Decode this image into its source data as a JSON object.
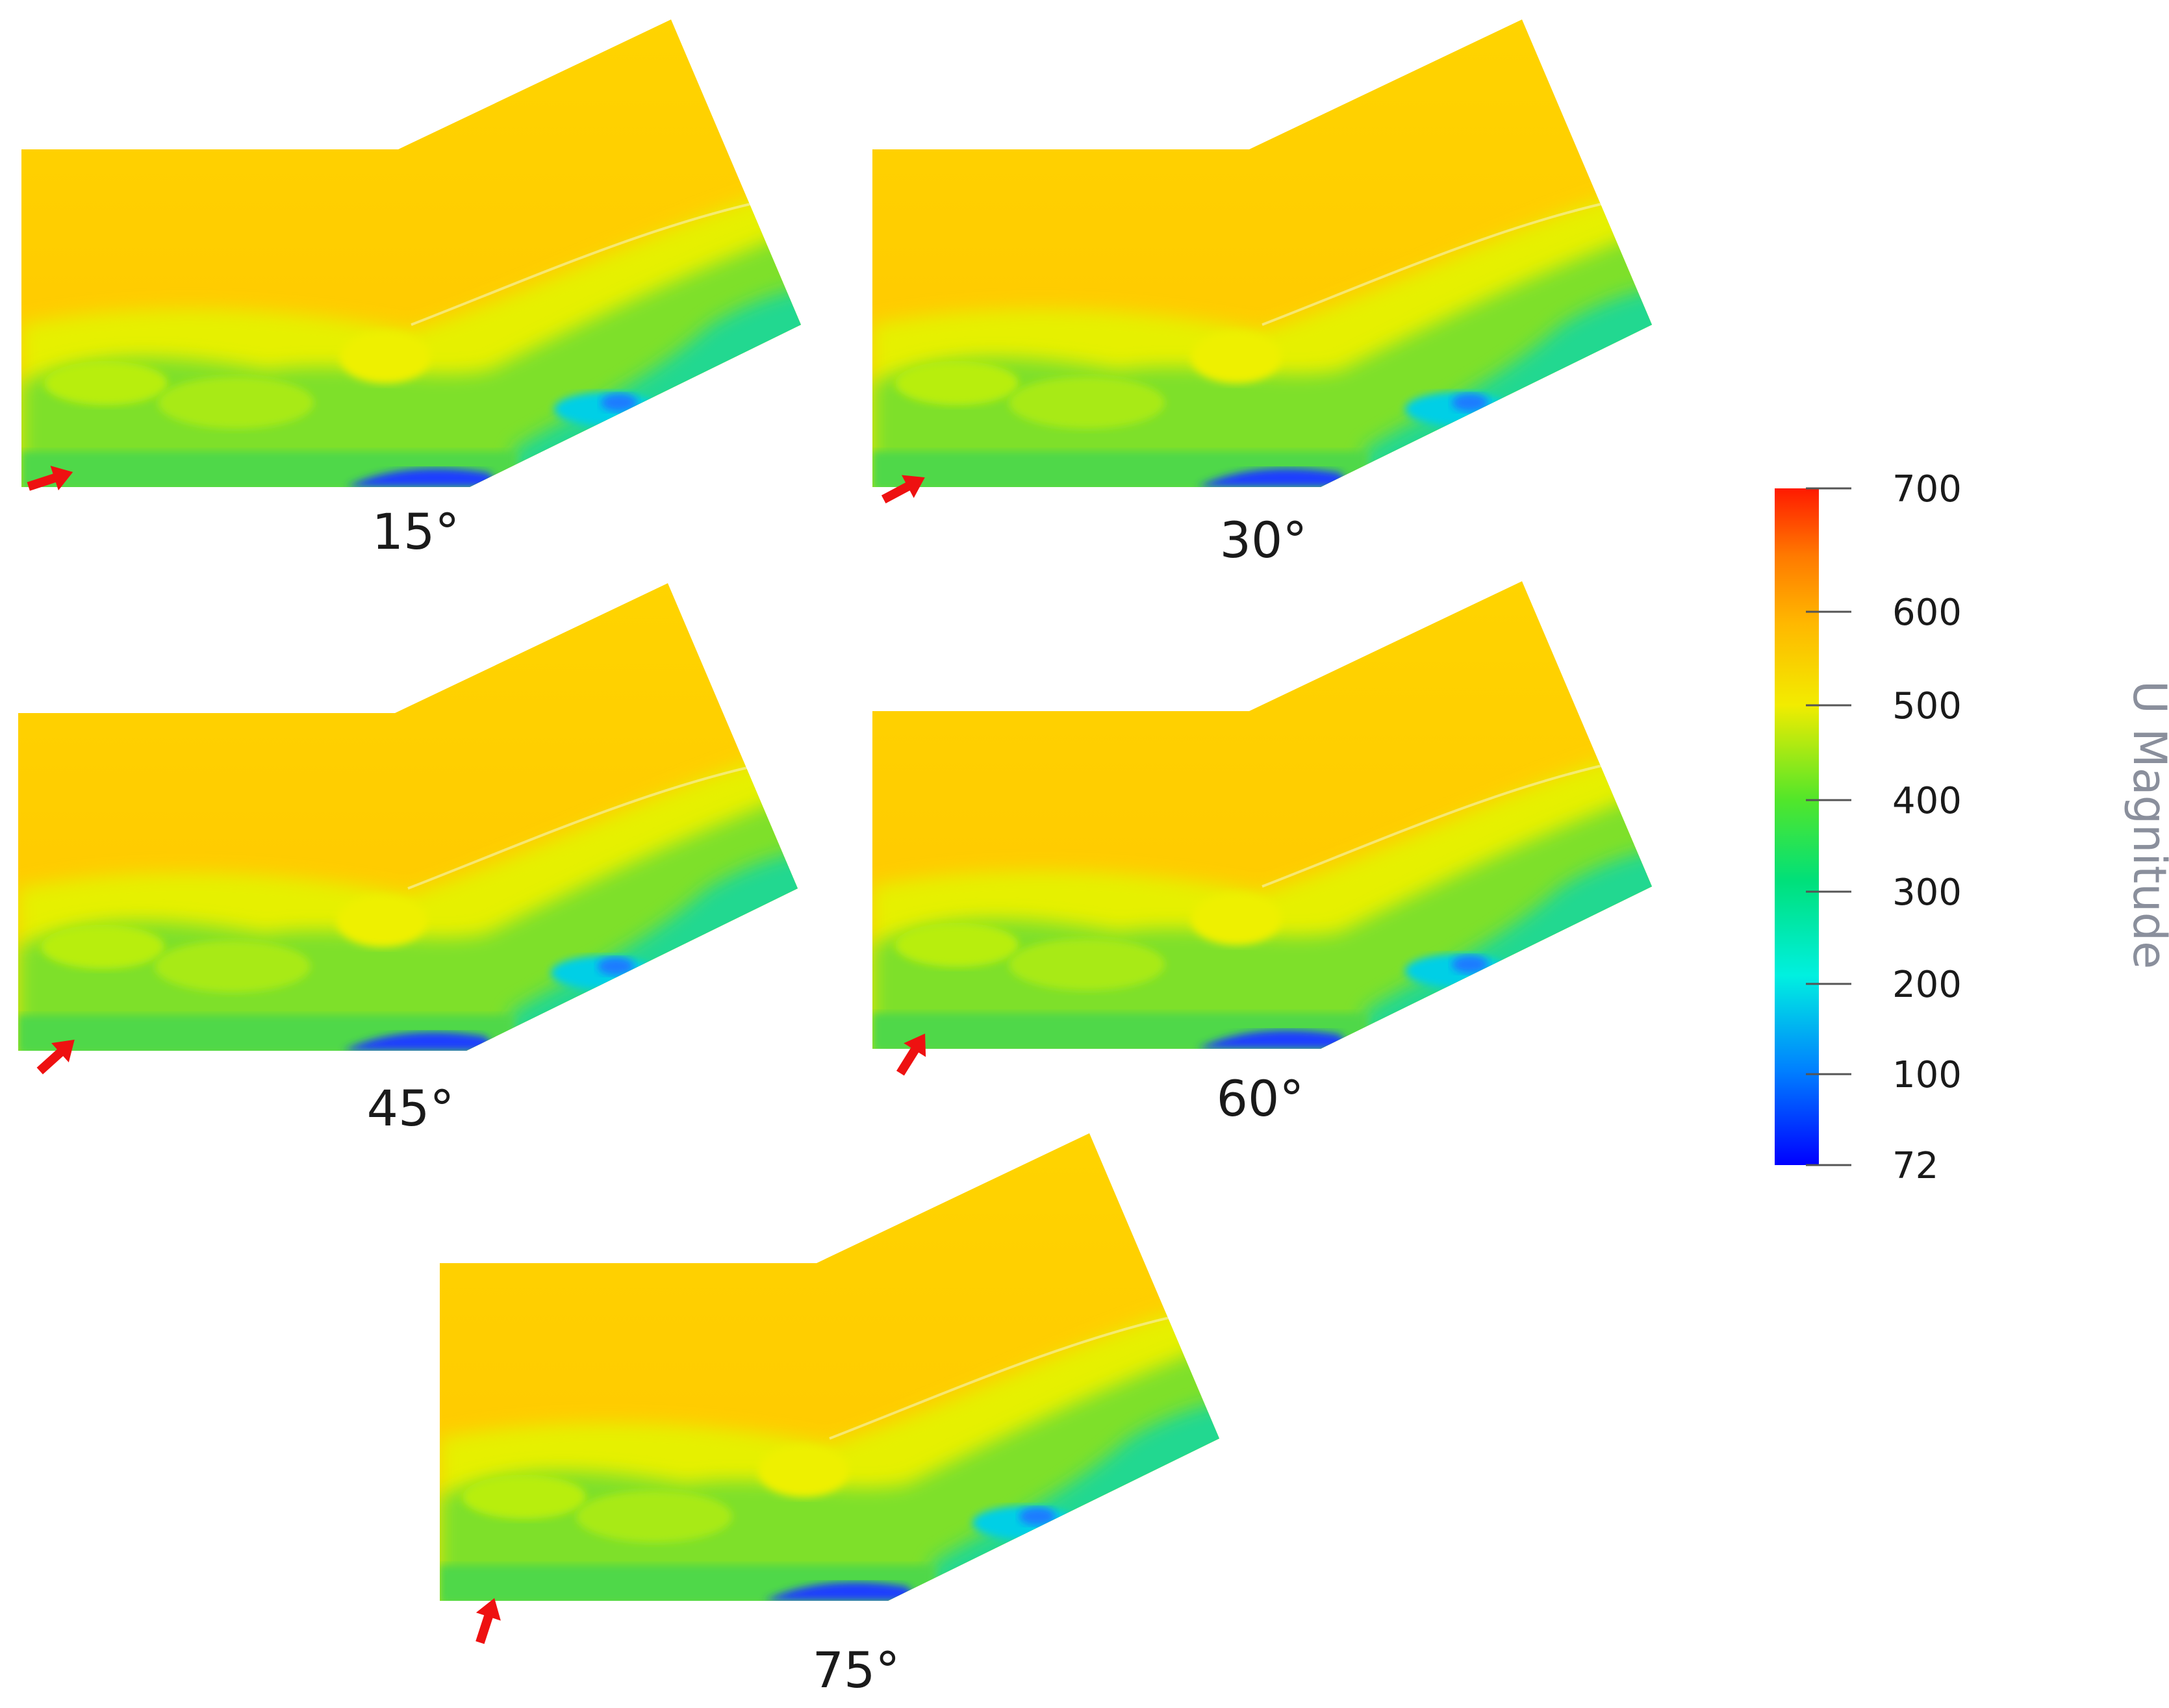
{
  "panels": [
    {
      "label": "15°"
    },
    {
      "label": "30°"
    },
    {
      "label": "45°"
    },
    {
      "label": "60°"
    },
    {
      "label": "75°"
    }
  ],
  "colorbar": {
    "title": "U Magnitude",
    "ticks": [
      "700",
      "600",
      "500",
      "400",
      "300",
      "200",
      "100",
      "72"
    ],
    "colors": [
      "#ff1a00",
      "#ff9a00",
      "#ffd700",
      "#e6ff00",
      "#00e600",
      "#00f0d8",
      "#0050ff",
      "#0000ff"
    ]
  },
  "field_colors": {
    "core": "#ffd200",
    "shear": "#e8f000",
    "mixing": "#55e03a",
    "wake": "#00d8c8",
    "low": "#1a3cff",
    "arrow": "#ee1111"
  }
}
